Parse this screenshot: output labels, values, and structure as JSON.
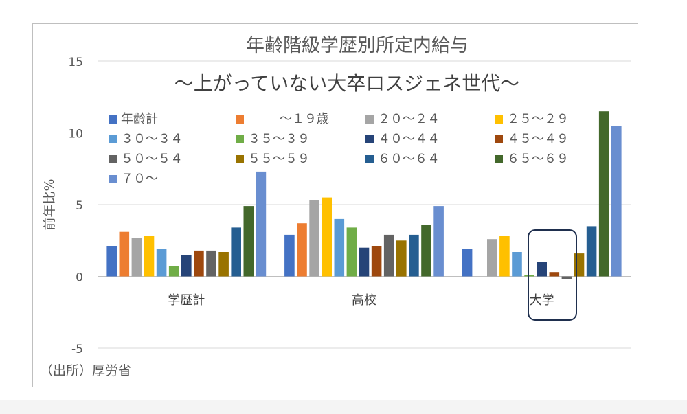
{
  "chart_data": {
    "type": "bar",
    "title": "年齢階級学歴別所定内給与",
    "subtitle": "～上がっていない大卒ロスジェネ世代～",
    "ylabel": "前年比%",
    "xlabel": "",
    "ylim": [
      -5,
      15
    ],
    "yticks": [
      "15",
      "10",
      "5",
      "0",
      "-5"
    ],
    "grid": true,
    "legend_position": "top",
    "source_note": "（出所）厚労省",
    "highlight_category": "大学",
    "categories": [
      "学歴計",
      "高校",
      "大学"
    ],
    "series": [
      {
        "name": "年齢計",
        "color": "#4472c4",
        "values": [
          2.1,
          2.9,
          1.9
        ]
      },
      {
        "name": "～１９歳",
        "color": "#ed7d31",
        "values": [
          3.1,
          3.7,
          null
        ]
      },
      {
        "name": "２０～２４",
        "color": "#a5a5a5",
        "values": [
          2.7,
          5.3,
          2.6
        ]
      },
      {
        "name": "２５～２９",
        "color": "#ffc000",
        "values": [
          2.8,
          5.5,
          2.8
        ]
      },
      {
        "name": "３０～３４",
        "color": "#5b9bd5",
        "values": [
          1.9,
          4.0,
          1.7
        ]
      },
      {
        "name": "３５～３９",
        "color": "#70ad47",
        "values": [
          0.7,
          3.4,
          0.1
        ]
      },
      {
        "name": "４０～４４",
        "color": "#264478",
        "values": [
          1.5,
          2.0,
          1.0
        ]
      },
      {
        "name": "４５～４９",
        "color": "#9e480e",
        "values": [
          1.8,
          2.1,
          0.3
        ]
      },
      {
        "name": "５０～５４",
        "color": "#636363",
        "values": [
          1.8,
          2.9,
          -0.2
        ]
      },
      {
        "name": "５５～５９",
        "color": "#997300",
        "values": [
          1.7,
          2.5,
          1.6
        ]
      },
      {
        "name": "６０～６４",
        "color": "#255e91",
        "values": [
          3.4,
          2.9,
          3.5
        ]
      },
      {
        "name": "６５～６９",
        "color": "#43682b",
        "values": [
          4.9,
          3.6,
          11.5
        ]
      },
      {
        "name": "７０～",
        "color": "#698ed0",
        "values": [
          7.3,
          4.9,
          10.5
        ]
      }
    ]
  }
}
